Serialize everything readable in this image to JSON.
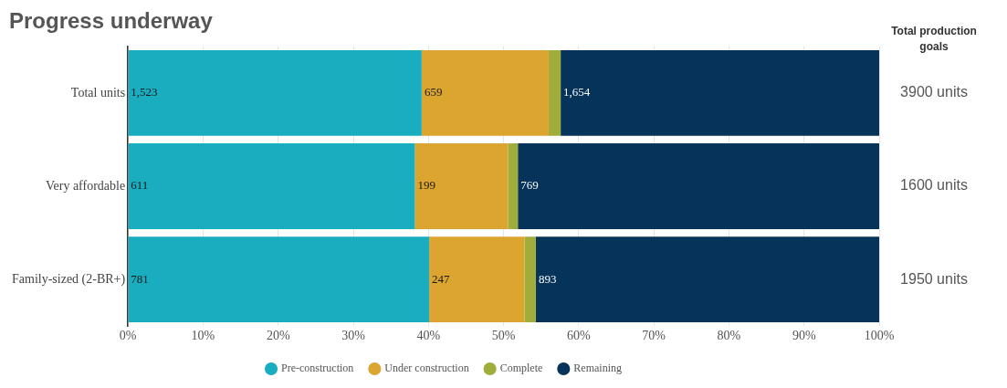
{
  "chart_data": {
    "type": "bar",
    "orientation": "horizontal",
    "stacked": true,
    "title": "Progress underway",
    "categories": [
      "Total units",
      "Very affordable",
      "Family-sized (2-BR+)"
    ],
    "series": [
      {
        "name": "Pre-construction",
        "color": "#1aadbf",
        "values": [
          39.1,
          38.2,
          40.1
        ]
      },
      {
        "name": "Under construction",
        "color": "#dba530",
        "values": [
          16.9,
          12.4,
          12.7
        ]
      },
      {
        "name": "Complete",
        "color": "#a0ad3a",
        "values": [
          1.6,
          1.3,
          1.5
        ]
      },
      {
        "name": "Remaining",
        "color": "#05335a",
        "values": [
          42.4,
          48.1,
          45.8
        ]
      }
    ],
    "xlim": [
      0,
      100
    ],
    "xticks": [
      {
        "value": 0,
        "label": "0%"
      },
      {
        "value": 10,
        "label": "10%"
      },
      {
        "value": 20,
        "label": "20%"
      },
      {
        "value": 30,
        "label": "30%"
      },
      {
        "value": 40,
        "label": "40%"
      },
      {
        "value": 50,
        "label": "50%"
      },
      {
        "value": 60,
        "label": "60%"
      },
      {
        "value": 70,
        "label": "70%"
      },
      {
        "value": 80,
        "label": "80%"
      },
      {
        "value": 90,
        "label": "90%"
      },
      {
        "value": 100,
        "label": "100%"
      }
    ],
    "grid": "x",
    "legend": "bottom",
    "annotations": [
      "Total production goals",
      "3900 units",
      "1600 units",
      "1950 units",
      {
        "text": "1,523",
        "x": 0,
        "y": "Total units"
      },
      {
        "text": "611",
        "x": 0,
        "y": "Very affordable"
      },
      {
        "text": "781",
        "x": 0,
        "y": "Family-sized (2-BR+)"
      },
      {
        "text": "659",
        "x": 39.1,
        "y": "Total units"
      },
      {
        "text": "199",
        "x": 38.2,
        "y": "Very affordable"
      },
      {
        "text": "247",
        "x": 40.1,
        "y": "Family-sized (2-BR+)"
      },
      {
        "text": "1,654",
        "x": 57.6,
        "y": "Total units"
      },
      {
        "text": "769",
        "x": 51.9,
        "y": "Very affordable"
      },
      {
        "text": "893",
        "x": 54.3,
        "y": "Family-sized (2-BR+)"
      }
    ]
  }
}
